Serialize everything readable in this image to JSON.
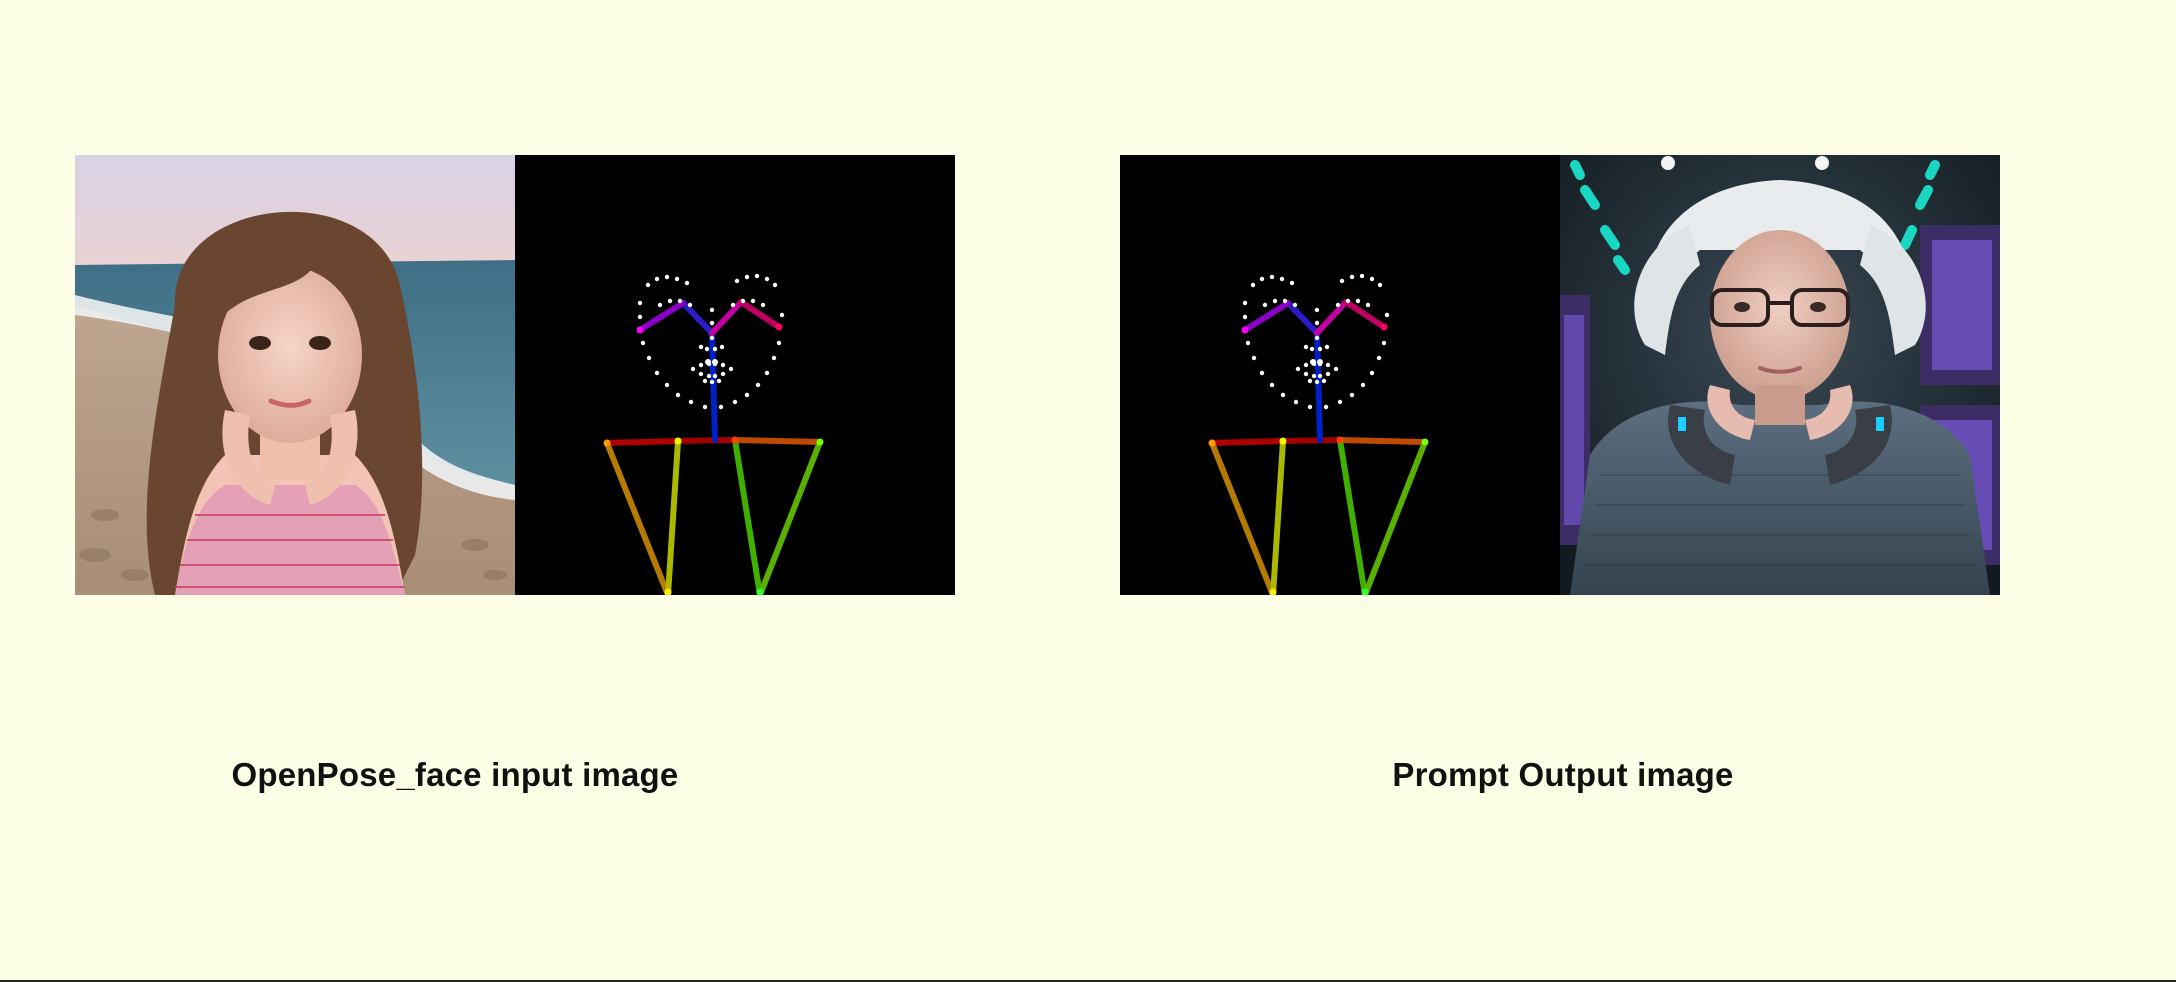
{
  "captions": {
    "left": "OpenPose_face input image",
    "right": "Prompt Output image"
  },
  "colors": {
    "background": "#fdfee6",
    "pose_canvas": "#000000"
  }
}
